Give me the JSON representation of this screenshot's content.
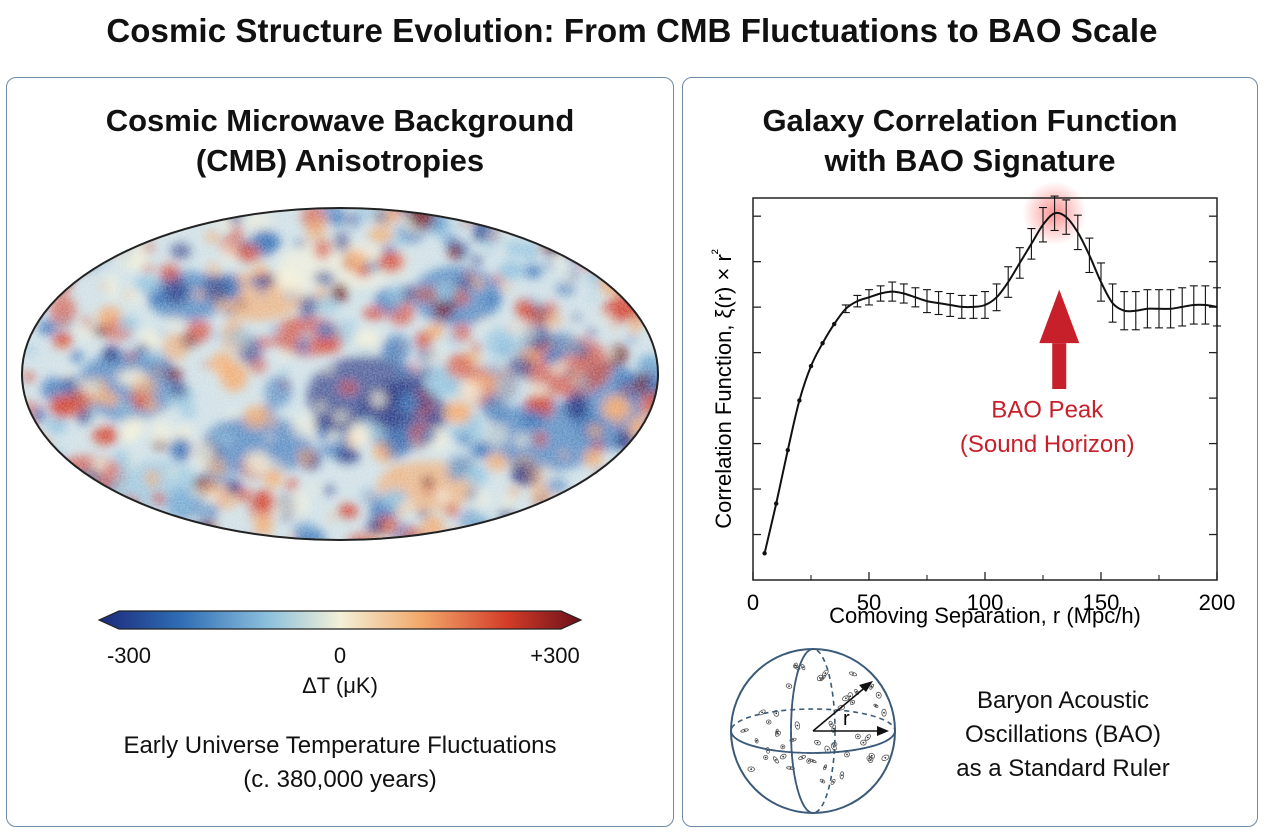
{
  "title": "Cosmic Structure Evolution: From CMB Fluctuations to BAO Scale",
  "cmb_panel": {
    "title_line1": "Cosmic Microwave Background",
    "title_line2": "(CMB) Anisotropies",
    "colorbar": {
      "min_label": "-300",
      "mid_label": "0",
      "max_label": "+300",
      "label": "ΔT (μK)",
      "colors": [
        "#1b2a7a",
        "#2f6db5",
        "#8cc0dd",
        "#f3f0d8",
        "#f2a76a",
        "#d23b27",
        "#6b0f1a"
      ]
    },
    "caption_line1": "Early Universe Temperature Fluctuations",
    "caption_line2": "(c. 380,000 years)"
  },
  "bao_panel": {
    "title_line1": "Galaxy Correlation Function",
    "title_line2": "with BAO Signature",
    "chart_data": {
      "type": "line",
      "xlabel": "Comoving Separation, r (Mpc/h)",
      "ylabel": "Correlation Function, ξ(r) × r²",
      "xlim": [
        0,
        200
      ],
      "xticks": [
        0,
        50,
        100,
        150,
        200
      ],
      "ylim": [
        0,
        1
      ],
      "series": [
        {
          "x": [
            5,
            10,
            15,
            20,
            25,
            30,
            35,
            40,
            45,
            50,
            55,
            60,
            65,
            70,
            75,
            80,
            85,
            90,
            95,
            100,
            105,
            110,
            115,
            120,
            125,
            130,
            135,
            140,
            145,
            150,
            155,
            160,
            165,
            170,
            175,
            180,
            185,
            190,
            195,
            200
          ],
          "y": [
            0.07,
            0.2,
            0.34,
            0.47,
            0.56,
            0.62,
            0.67,
            0.71,
            0.73,
            0.74,
            0.75,
            0.755,
            0.75,
            0.74,
            0.73,
            0.725,
            0.72,
            0.715,
            0.715,
            0.72,
            0.74,
            0.78,
            0.83,
            0.88,
            0.93,
            0.96,
            0.95,
            0.91,
            0.85,
            0.78,
            0.725,
            0.705,
            0.705,
            0.71,
            0.71,
            0.71,
            0.715,
            0.72,
            0.72,
            0.715
          ],
          "err": [
            0,
            0,
            0,
            0,
            0,
            0,
            0,
            0.01,
            0.015,
            0.02,
            0.02,
            0.025,
            0.025,
            0.025,
            0.03,
            0.03,
            0.03,
            0.03,
            0.03,
            0.035,
            0.035,
            0.04,
            0.04,
            0.04,
            0.045,
            0.045,
            0.045,
            0.045,
            0.045,
            0.05,
            0.05,
            0.05,
            0.05,
            0.05,
            0.05,
            0.05,
            0.05,
            0.05,
            0.05,
            0.05
          ]
        }
      ],
      "annotation": {
        "text_line1": "BAO Peak",
        "text_line2": "(Sound Horizon)",
        "x": 132,
        "color": "#c8202a"
      }
    },
    "diagram_label": "r",
    "caption_line1": "Baryon Acoustic",
    "caption_line2": "Oscillations (BAO)",
    "caption_line3": "as a Standard Ruler"
  }
}
